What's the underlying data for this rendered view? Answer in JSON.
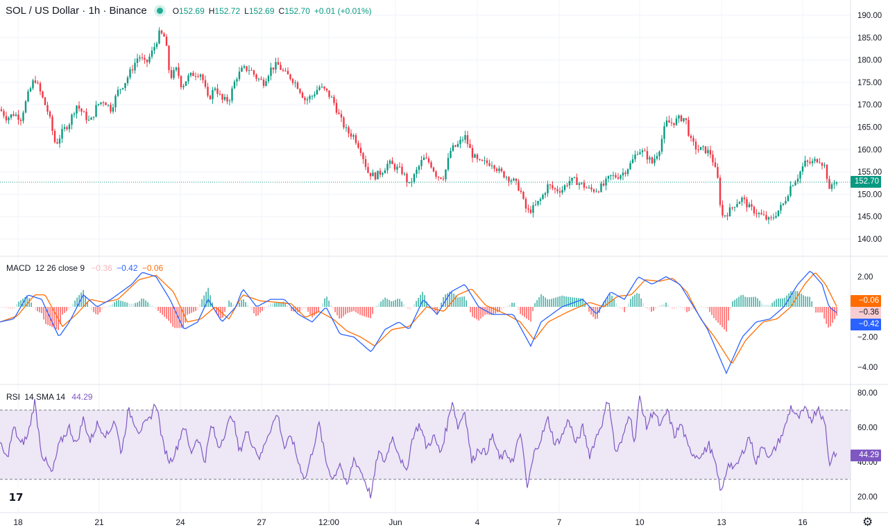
{
  "header": {
    "title": "SOL / US Dollar · 1h · Binance",
    "status": "market-open",
    "o_label": "O",
    "o": "152.69",
    "h_label": "H",
    "h": "152.72",
    "l_label": "L",
    "l": "152.69",
    "c_label": "C",
    "c": "152.70",
    "change": "+0.01 (+0.01%)"
  },
  "price_axis": [
    "190.00",
    "185.00",
    "180.00",
    "175.00",
    "170.00",
    "165.00",
    "160.00",
    "155.00",
    "150.00",
    "145.00",
    "140.00"
  ],
  "current_price": "152.70",
  "macd": {
    "label": "MACD",
    "params": "12 26 close 9",
    "hist": "−0.36",
    "macd": "−0.42",
    "signal": "−0.06",
    "axis": [
      "2.00",
      "−2.00",
      "−4.00"
    ],
    "tag_signal": "−0.06",
    "tag_hist": "−0.36",
    "tag_macd": "−0.42"
  },
  "rsi": {
    "label": "RSI",
    "params": "14 SMA 14",
    "value": "44.29",
    "axis": [
      "80.00",
      "60.00",
      "40.00",
      "20.00"
    ],
    "tag": "44.29",
    "upper_band": 70,
    "lower_band": 30
  },
  "time_axis": [
    "18",
    "21",
    "24",
    "27",
    "12:00",
    "Jun",
    "4",
    "7",
    "10",
    "13",
    "16"
  ],
  "colors": {
    "up": "#089981",
    "down": "#f23645",
    "macd": "#2962ff",
    "signal": "#ff6d00",
    "rsi": "#7e57c2",
    "band": "#ede7f6"
  },
  "icons": {
    "logo": "tradingview-logo-icon",
    "settings": "gear-icon"
  },
  "chart_data": {
    "type": "candlestick",
    "symbol": "SOLUSD",
    "interval": "1h",
    "ylim": [
      138,
      192
    ],
    "close_path": [
      [
        0,
        169
      ],
      [
        10,
        167
      ],
      [
        20,
        168
      ],
      [
        30,
        167
      ],
      [
        40,
        172
      ],
      [
        50,
        176
      ],
      [
        60,
        172
      ],
      [
        70,
        168
      ],
      [
        80,
        161
      ],
      [
        90,
        164
      ],
      [
        100,
        166
      ],
      [
        110,
        170
      ],
      [
        120,
        168
      ],
      [
        130,
        166
      ],
      [
        140,
        170
      ],
      [
        150,
        171
      ],
      [
        160,
        169
      ],
      [
        170,
        173
      ],
      [
        180,
        175
      ],
      [
        190,
        178
      ],
      [
        200,
        181
      ],
      [
        210,
        179
      ],
      [
        220,
        182
      ],
      [
        230,
        186
      ],
      [
        238,
        185
      ],
      [
        245,
        176
      ],
      [
        255,
        178
      ],
      [
        262,
        174
      ],
      [
        270,
        176
      ],
      [
        280,
        177
      ],
      [
        290,
        177
      ],
      [
        300,
        171
      ],
      [
        310,
        174
      ],
      [
        320,
        171
      ],
      [
        330,
        171
      ],
      [
        340,
        176
      ],
      [
        350,
        178
      ],
      [
        360,
        178
      ],
      [
        370,
        176
      ],
      [
        380,
        175
      ],
      [
        390,
        178
      ],
      [
        400,
        179
      ],
      [
        410,
        177
      ],
      [
        420,
        176
      ],
      [
        430,
        174
      ],
      [
        440,
        171
      ],
      [
        450,
        172
      ],
      [
        460,
        174
      ],
      [
        470,
        173
      ],
      [
        480,
        171
      ],
      [
        490,
        167
      ],
      [
        500,
        164
      ],
      [
        510,
        163
      ],
      [
        520,
        160
      ],
      [
        530,
        155
      ],
      [
        540,
        154
      ],
      [
        550,
        155
      ],
      [
        560,
        157
      ],
      [
        570,
        156
      ],
      [
        580,
        155
      ],
      [
        590,
        152
      ],
      [
        600,
        155
      ],
      [
        610,
        158
      ],
      [
        620,
        157
      ],
      [
        630,
        154
      ],
      [
        640,
        154
      ],
      [
        650,
        160
      ],
      [
        660,
        161
      ],
      [
        670,
        163
      ],
      [
        680,
        159
      ],
      [
        690,
        157
      ],
      [
        700,
        157
      ],
      [
        710,
        157
      ],
      [
        720,
        155
      ],
      [
        730,
        154
      ],
      [
        740,
        153
      ],
      [
        750,
        151
      ],
      [
        755,
        148
      ],
      [
        760,
        146
      ],
      [
        770,
        147
      ],
      [
        780,
        149
      ],
      [
        790,
        152
      ],
      [
        800,
        151
      ],
      [
        810,
        151
      ],
      [
        820,
        153
      ],
      [
        830,
        153
      ],
      [
        840,
        152
      ],
      [
        850,
        151
      ],
      [
        860,
        151
      ],
      [
        870,
        152
      ],
      [
        880,
        154
      ],
      [
        890,
        154
      ],
      [
        900,
        155
      ],
      [
        910,
        157
      ],
      [
        920,
        160
      ],
      [
        930,
        159
      ],
      [
        940,
        157
      ],
      [
        950,
        160
      ],
      [
        960,
        166
      ],
      [
        970,
        166
      ],
      [
        980,
        167
      ],
      [
        988,
        167
      ],
      [
        995,
        162
      ],
      [
        1005,
        160
      ],
      [
        1015,
        160
      ],
      [
        1025,
        159
      ],
      [
        1035,
        153
      ],
      [
        1040,
        145
      ],
      [
        1050,
        146
      ],
      [
        1060,
        148
      ],
      [
        1070,
        149
      ],
      [
        1080,
        147
      ],
      [
        1090,
        146
      ],
      [
        1100,
        145
      ],
      [
        1110,
        144
      ],
      [
        1120,
        146
      ],
      [
        1130,
        148
      ],
      [
        1140,
        152
      ],
      [
        1150,
        154
      ],
      [
        1160,
        157
      ],
      [
        1170,
        157
      ],
      [
        1180,
        158
      ],
      [
        1190,
        156
      ],
      [
        1196,
        150
      ],
      [
        1200,
        153
      ],
      [
        1207,
        152.7
      ]
    ],
    "macd_path": [
      [
        0,
        -1
      ],
      [
        20,
        -0.8
      ],
      [
        40,
        0.8
      ],
      [
        60,
        0.5
      ],
      [
        85,
        -2
      ],
      [
        100,
        -1
      ],
      [
        120,
        0.8
      ],
      [
        140,
        0
      ],
      [
        160,
        0.5
      ],
      [
        190,
        1.5
      ],
      [
        205,
        2.3
      ],
      [
        225,
        2
      ],
      [
        245,
        0.5
      ],
      [
        265,
        -1.5
      ],
      [
        285,
        -1
      ],
      [
        300,
        0.5
      ],
      [
        320,
        -1
      ],
      [
        340,
        0
      ],
      [
        350,
        1.2
      ],
      [
        370,
        0
      ],
      [
        390,
        0.5
      ],
      [
        410,
        0.5
      ],
      [
        430,
        -0.5
      ],
      [
        450,
        -1
      ],
      [
        470,
        0
      ],
      [
        490,
        -1.8
      ],
      [
        510,
        -2
      ],
      [
        535,
        -3
      ],
      [
        555,
        -1.5
      ],
      [
        575,
        -1
      ],
      [
        590,
        -1.5
      ],
      [
        610,
        0.5
      ],
      [
        630,
        -0.5
      ],
      [
        650,
        1
      ],
      [
        670,
        1.5
      ],
      [
        690,
        0
      ],
      [
        710,
        -0.5
      ],
      [
        740,
        -0.5
      ],
      [
        765,
        -2.6
      ],
      [
        780,
        -1
      ],
      [
        810,
        0
      ],
      [
        840,
        0.5
      ],
      [
        860,
        -0.5
      ],
      [
        880,
        1
      ],
      [
        900,
        0.5
      ],
      [
        920,
        2
      ],
      [
        940,
        1.5
      ],
      [
        960,
        2
      ],
      [
        980,
        1.5
      ],
      [
        1000,
        0
      ],
      [
        1020,
        -1.5
      ],
      [
        1047,
        -4.4
      ],
      [
        1070,
        -2
      ],
      [
        1090,
        -1
      ],
      [
        1110,
        -0.8
      ],
      [
        1130,
        0
      ],
      [
        1150,
        1.5
      ],
      [
        1168,
        2.4
      ],
      [
        1185,
        1.5
      ],
      [
        1195,
        0
      ],
      [
        1207,
        -0.42
      ]
    ],
    "signal_path": [
      [
        0,
        -1
      ],
      [
        25,
        -0.6
      ],
      [
        50,
        0.8
      ],
      [
        65,
        0.8
      ],
      [
        90,
        -1.3
      ],
      [
        110,
        -0.5
      ],
      [
        130,
        0.5
      ],
      [
        150,
        0.3
      ],
      [
        170,
        0.5
      ],
      [
        200,
        1.8
      ],
      [
        225,
        2.1
      ],
      [
        250,
        1
      ],
      [
        270,
        -1
      ],
      [
        290,
        -0.8
      ],
      [
        310,
        0
      ],
      [
        330,
        -0.8
      ],
      [
        350,
        0.8
      ],
      [
        375,
        0.4
      ],
      [
        400,
        0.3
      ],
      [
        420,
        0.2
      ],
      [
        440,
        -0.7
      ],
      [
        460,
        -0.3
      ],
      [
        480,
        -0.8
      ],
      [
        500,
        -1.6
      ],
      [
        520,
        -2
      ],
      [
        540,
        -2.6
      ],
      [
        565,
        -1.5
      ],
      [
        590,
        -1.3
      ],
      [
        615,
        0
      ],
      [
        640,
        -0.3
      ],
      [
        660,
        0.8
      ],
      [
        680,
        1.2
      ],
      [
        700,
        0.1
      ],
      [
        730,
        -0.5
      ],
      [
        750,
        -1
      ],
      [
        770,
        -2.2
      ],
      [
        790,
        -1
      ],
      [
        820,
        -0.3
      ],
      [
        850,
        0.3
      ],
      [
        870,
        0
      ],
      [
        890,
        0.7
      ],
      [
        910,
        0.8
      ],
      [
        930,
        1.8
      ],
      [
        950,
        1.7
      ],
      [
        970,
        1.9
      ],
      [
        990,
        1
      ],
      [
        1010,
        -0.8
      ],
      [
        1030,
        -2
      ],
      [
        1055,
        -3.8
      ],
      [
        1075,
        -2.2
      ],
      [
        1100,
        -1
      ],
      [
        1120,
        -0.8
      ],
      [
        1140,
        0
      ],
      [
        1160,
        1.5
      ],
      [
        1175,
        2.3
      ],
      [
        1190,
        1.5
      ],
      [
        1207,
        -0.06
      ]
    ],
    "rsi_path": [
      [
        0,
        50
      ],
      [
        10,
        42
      ],
      [
        20,
        60
      ],
      [
        30,
        50
      ],
      [
        40,
        55
      ],
      [
        50,
        75
      ],
      [
        60,
        45
      ],
      [
        75,
        33
      ],
      [
        85,
        50
      ],
      [
        100,
        60
      ],
      [
        110,
        50
      ],
      [
        120,
        65
      ],
      [
        130,
        52
      ],
      [
        140,
        62
      ],
      [
        155,
        55
      ],
      [
        165,
        65
      ],
      [
        175,
        45
      ],
      [
        185,
        70
      ],
      [
        200,
        58
      ],
      [
        215,
        64
      ],
      [
        225,
        75
      ],
      [
        235,
        50
      ],
      [
        245,
        40
      ],
      [
        255,
        48
      ],
      [
        265,
        62
      ],
      [
        275,
        45
      ],
      [
        285,
        55
      ],
      [
        295,
        40
      ],
      [
        305,
        62
      ],
      [
        315,
        48
      ],
      [
        325,
        58
      ],
      [
        335,
        68
      ],
      [
        345,
        45
      ],
      [
        355,
        58
      ],
      [
        365,
        50
      ],
      [
        375,
        42
      ],
      [
        385,
        55
      ],
      [
        400,
        68
      ],
      [
        410,
        48
      ],
      [
        420,
        55
      ],
      [
        430,
        40
      ],
      [
        440,
        30
      ],
      [
        450,
        46
      ],
      [
        460,
        62
      ],
      [
        470,
        40
      ],
      [
        480,
        30
      ],
      [
        490,
        40
      ],
      [
        500,
        25
      ],
      [
        510,
        42
      ],
      [
        520,
        35
      ],
      [
        535,
        20
      ],
      [
        545,
        46
      ],
      [
        555,
        40
      ],
      [
        565,
        55
      ],
      [
        575,
        45
      ],
      [
        585,
        33
      ],
      [
        595,
        55
      ],
      [
        605,
        62
      ],
      [
        615,
        48
      ],
      [
        625,
        55
      ],
      [
        635,
        45
      ],
      [
        645,
        62
      ],
      [
        652,
        76
      ],
      [
        660,
        60
      ],
      [
        670,
        70
      ],
      [
        680,
        40
      ],
      [
        690,
        48
      ],
      [
        700,
        45
      ],
      [
        710,
        55
      ],
      [
        720,
        42
      ],
      [
        730,
        45
      ],
      [
        740,
        40
      ],
      [
        750,
        58
      ],
      [
        760,
        25
      ],
      [
        770,
        45
      ],
      [
        780,
        54
      ],
      [
        790,
        65
      ],
      [
        800,
        50
      ],
      [
        810,
        55
      ],
      [
        820,
        65
      ],
      [
        830,
        50
      ],
      [
        840,
        60
      ],
      [
        850,
        44
      ],
      [
        860,
        55
      ],
      [
        870,
        65
      ],
      [
        877,
        78
      ],
      [
        887,
        45
      ],
      [
        897,
        52
      ],
      [
        907,
        70
      ],
      [
        915,
        50
      ],
      [
        922,
        78
      ],
      [
        932,
        60
      ],
      [
        942,
        70
      ],
      [
        952,
        60
      ],
      [
        962,
        70
      ],
      [
        972,
        55
      ],
      [
        982,
        62
      ],
      [
        992,
        48
      ],
      [
        1002,
        44
      ],
      [
        1012,
        44
      ],
      [
        1022,
        50
      ],
      [
        1030,
        40
      ],
      [
        1040,
        22
      ],
      [
        1050,
        40
      ],
      [
        1060,
        36
      ],
      [
        1070,
        45
      ],
      [
        1080,
        55
      ],
      [
        1090,
        40
      ],
      [
        1100,
        50
      ],
      [
        1110,
        42
      ],
      [
        1120,
        50
      ],
      [
        1130,
        58
      ],
      [
        1140,
        72
      ],
      [
        1150,
        65
      ],
      [
        1160,
        70
      ],
      [
        1170,
        65
      ],
      [
        1180,
        72
      ],
      [
        1190,
        60
      ],
      [
        1196,
        37
      ],
      [
        1200,
        46
      ],
      [
        1207,
        44.29
      ]
    ]
  }
}
